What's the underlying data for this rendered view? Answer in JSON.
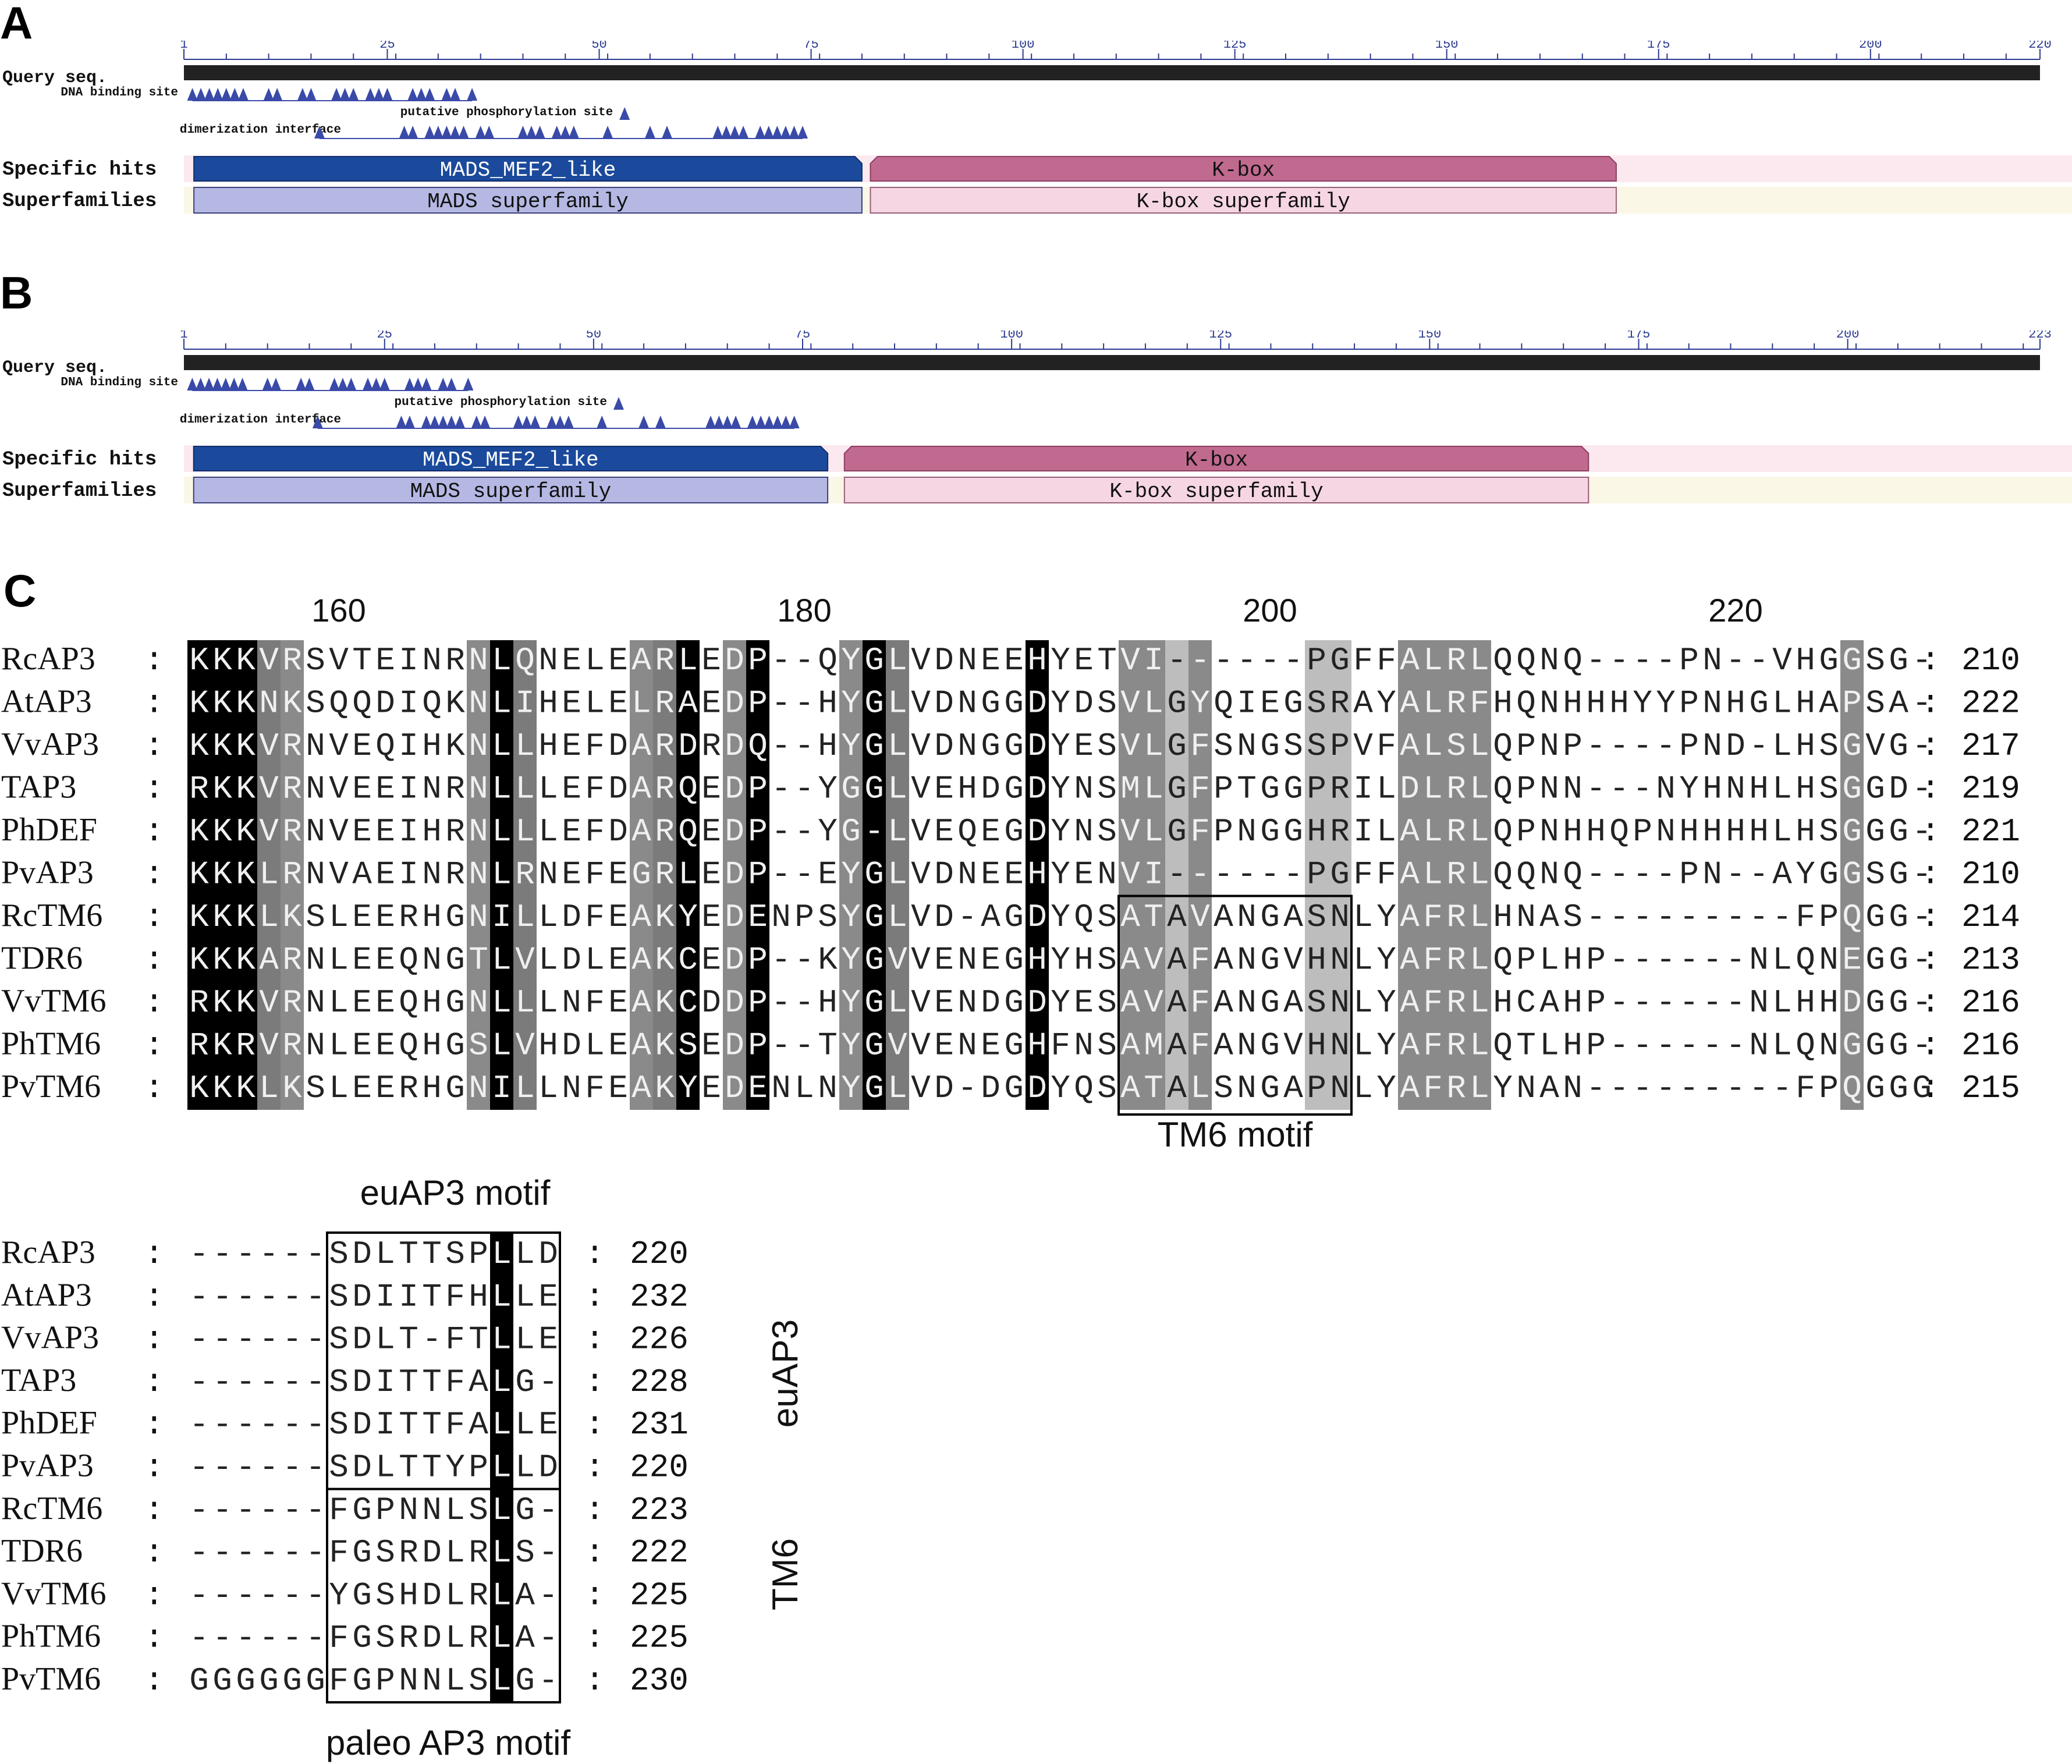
{
  "panels": {
    "a": {
      "letter": "A",
      "query_label": "Query seq.",
      "length": 220,
      "ticks": [
        "1",
        "25",
        "50",
        "75",
        "100",
        "125",
        "150",
        "175",
        "200",
        "220"
      ],
      "dna_binding_label": "DNA binding site",
      "phospho_label": "putative phosphorylation site",
      "dimer_label": "dimerization interface",
      "specific_hits_label": "Specific hits",
      "superfamilies_label": "Superfamilies",
      "mads_hit": "MADS_MEF2_like",
      "kbox_hit": "K-box",
      "mads_super": "MADS superfamily",
      "kbox_super": "K-box superfamily"
    },
    "b": {
      "letter": "B",
      "query_label": "Query seq.",
      "length": 223,
      "ticks": [
        "1",
        "25",
        "50",
        "75",
        "100",
        "125",
        "150",
        "175",
        "200",
        "223"
      ],
      "dna_binding_label": "DNA binding site",
      "phospho_label": "putative phosphorylation site",
      "dimer_label": "dimerization interface",
      "specific_hits_label": "Specific hits",
      "superfamilies_label": "Superfamilies",
      "mads_hit": "MADS_MEF2_like",
      "kbox_hit": "K-box",
      "mads_super": "MADS superfamily",
      "kbox_super": "K-box superfamily"
    },
    "c": {
      "letter": "C"
    }
  },
  "alignment1": {
    "ruler": [
      {
        "label": "160",
        "col": 6
      },
      {
        "label": "180",
        "col": 26
      },
      {
        "label": "200",
        "col": 46
      },
      {
        "label": "220",
        "col": 66
      }
    ],
    "rows": [
      {
        "name": "RcAP3",
        "seq": "KKKVRSVTEINRNLQNELEARLEDP--QYGLVDNEEHYETVI------PGFFALRLQQNQ----PN--VHGGSG-",
        "end": "210"
      },
      {
        "name": "AtAP3",
        "seq": "KKKNKSQQDIQKNLIHELELRAEDP--HYGLVDNGGDYDSVLGYQIEGSRAYALRFHQNHHHYYPNHGLHAPSA-",
        "end": "222"
      },
      {
        "name": "VvAP3",
        "seq": "KKKVRNVEQIHKNLLHEFDARDRDQ--HYGLVDNGGDYESVLGFSNGSSPVFALSLQPNP----PND-LHSGVG-",
        "end": "217"
      },
      {
        "name": "TAP3",
        "seq": "RKKVRNVEEINRNLLLEFDARQEDP--YGGLVEHDGDYNSMLGFPTGGPRILDLRLQPNN---NYHNHLHSGGD-",
        "end": "219"
      },
      {
        "name": "PhDEF",
        "seq": "KKKVRNVEEIHRNLLLEFDARQEDP--YG-LVEQEGDYNSVLGFPNGGHRILALRLQPNHHQPNHHHHLHSGGG-",
        "end": "221"
      },
      {
        "name": "PvAP3",
        "seq": "KKKLRNVAEINRNLRNEFEGRLEDP--EYGLVDNEEHYENVI------PGFFALRLQQNQ----PN--AYGGSG-",
        "end": "210"
      },
      {
        "name": "RcTM6",
        "seq": "KKKLKSLEERHGNILLDFEAKYEDENPSYGLVD-AGDYQSATAVANGASNLYAFRLHNAS---------FPQGG-",
        "end": "214"
      },
      {
        "name": "TDR6",
        "seq": "KKKARNLEEQNGTLVLDLEAKCEDP--KYGVVENEGHYHSAVAFANGVHNLYAFRLQPLHP------NLQNEGG-",
        "end": "213"
      },
      {
        "name": "VvTM6",
        "seq": "RKKVRNLEEQHGNLLLNFEAKCDDP--HYGLVENDGDYESAVAFANGASNLYAFRLHCAHP------NLHHDGG-",
        "end": "216"
      },
      {
        "name": "PhTM6",
        "seq": "RKRVRNLEEQHGSLVHDLEAKSEDP--TYGVVENEGHFNSAMAFANGVHNLYAFRLQTLHP------NLQNGGG-",
        "end": "216"
      },
      {
        "name": "PvTM6",
        "seq": "KKKLKSLEERHGNILLNFEAKYEDENLNYGLVD-DGDYQSATALSNGAPNLYAFRLYNAN---------FPQGGG",
        "end": "215"
      }
    ],
    "shade_columns": [
      "b",
      "b",
      "b",
      "d",
      "m",
      "",
      "",
      "",
      "",
      "",
      "",
      "",
      "m",
      "b",
      "d",
      "",
      "",
      "",
      "",
      "m",
      "d",
      "b",
      "",
      "m",
      "b",
      "",
      "",
      "",
      "m",
      "b",
      "d",
      "",
      "",
      "",
      "",
      "",
      "b",
      "",
      "",
      "",
      "m",
      "m",
      "l",
      "m",
      "",
      "",
      "",
      "",
      "l",
      "l",
      "",
      "",
      "m",
      "m",
      "m",
      "m",
      "",
      "",
      "",
      "",
      "",
      "",
      "",
      "",
      "",
      "",
      "",
      "",
      "",
      "",
      "",
      "m",
      ""
    ],
    "motif_label": "TM6 motif"
  },
  "alignment2": {
    "rows": [
      {
        "name": "RcAP3",
        "seq": "------SDLTTSPLLD",
        "end": "220"
      },
      {
        "name": "AtAP3",
        "seq": "------SDIITFHLLE",
        "end": "232"
      },
      {
        "name": "VvAP3",
        "seq": "------SDLT-FTLLE",
        "end": "226"
      },
      {
        "name": "TAP3",
        "seq": "------SDITTFALG-",
        "end": "228"
      },
      {
        "name": "PhDEF",
        "seq": "------SDITTFALLE",
        "end": "231"
      },
      {
        "name": "PvAP3",
        "seq": "------SDLTTYPLLD",
        "end": "220"
      },
      {
        "name": "RcTM6",
        "seq": "------FGPNNLSLG-",
        "end": "223"
      },
      {
        "name": "TDR6",
        "seq": "------FGSRDLRLS-",
        "end": "222"
      },
      {
        "name": "VvTM6",
        "seq": "------YGSHDLRLA-",
        "end": "225"
      },
      {
        "name": "PhTM6",
        "seq": "------FGSRDLRLA-",
        "end": "225"
      },
      {
        "name": "PvTM6",
        "seq": "GGGGGGFGPNNLSLG-",
        "end": "230"
      }
    ],
    "eu_motif_label": "euAP3 motif",
    "paleo_motif_label": "paleo AP3 motif",
    "group_eu": "euAP3",
    "group_tm6": "TM6"
  },
  "colors": {
    "black": "#000000",
    "dark_gray": "#7b7b7b",
    "light_gray": "#bdbdbd",
    "mads_blue": "#1b4a9c",
    "mads_super": "#b4b8e3",
    "kbox_pink": "#c06a8f",
    "kbox_super": "#f6d6e3",
    "triangle": "#3a4aa8"
  }
}
